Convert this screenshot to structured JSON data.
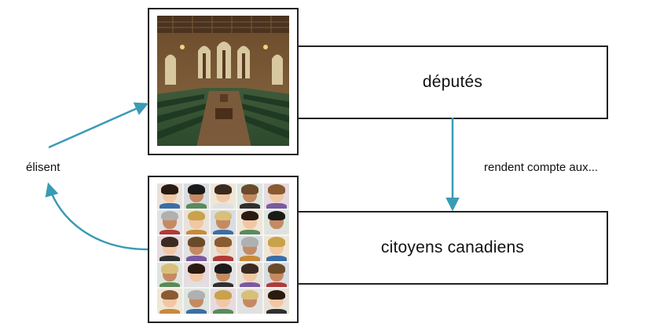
{
  "nodes": {
    "deputes": {
      "label": "députés"
    },
    "citoyens": {
      "label": "citoyens canadiens"
    }
  },
  "edges": {
    "elisent": {
      "label": "élisent"
    },
    "rendent_compte": {
      "label": "rendent compte aux..."
    }
  },
  "images": {
    "parliament": "house-of-commons-chamber-photo",
    "citizens": "collage-of-citizen-faces"
  },
  "colors": {
    "arrow": "#3a9bb5",
    "border": "#222222"
  }
}
